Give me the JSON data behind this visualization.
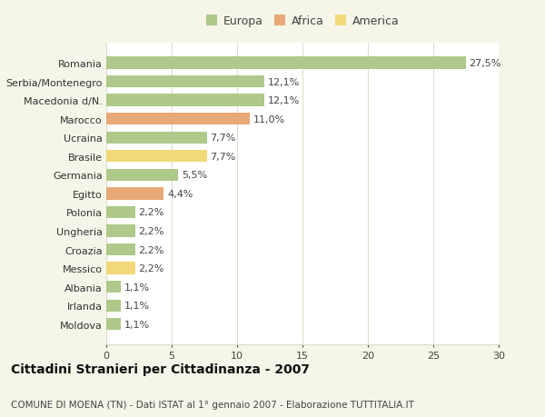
{
  "countries": [
    "Romania",
    "Serbia/Montenegro",
    "Macedonia d/N.",
    "Marocco",
    "Ucraina",
    "Brasile",
    "Germania",
    "Egitto",
    "Polonia",
    "Ungheria",
    "Croazia",
    "Messico",
    "Albania",
    "Irlanda",
    "Moldova"
  ],
  "values": [
    27.5,
    12.1,
    12.1,
    11.0,
    7.7,
    7.7,
    5.5,
    4.4,
    2.2,
    2.2,
    2.2,
    2.2,
    1.1,
    1.1,
    1.1
  ],
  "labels": [
    "27,5%",
    "12,1%",
    "12,1%",
    "11,0%",
    "7,7%",
    "7,7%",
    "5,5%",
    "4,4%",
    "2,2%",
    "2,2%",
    "2,2%",
    "2,2%",
    "1,1%",
    "1,1%",
    "1,1%"
  ],
  "colors": [
    "#aec98a",
    "#aec98a",
    "#aec98a",
    "#e8a878",
    "#aec98a",
    "#f2d878",
    "#aec98a",
    "#e8a878",
    "#aec98a",
    "#aec98a",
    "#aec98a",
    "#f2d878",
    "#aec98a",
    "#aec98a",
    "#aec98a"
  ],
  "legend_labels": [
    "Europa",
    "Africa",
    "America"
  ],
  "legend_colors": [
    "#aec98a",
    "#e8a878",
    "#f2d878"
  ],
  "title": "Cittadini Stranieri per Cittadinanza - 2007",
  "subtitle": "COMUNE DI MOENA (TN) - Dati ISTAT al 1° gennaio 2007 - Elaborazione TUTTITALIA.IT",
  "xlim": [
    0,
    30
  ],
  "xticks": [
    0,
    5,
    10,
    15,
    20,
    25,
    30
  ],
  "bg_color": "#f5f5e8",
  "plot_bg": "#ffffff",
  "grid_color": "#ddddcc",
  "bar_height": 0.65,
  "title_fontsize": 10,
  "subtitle_fontsize": 7.5,
  "tick_fontsize": 8,
  "label_fontsize": 8
}
